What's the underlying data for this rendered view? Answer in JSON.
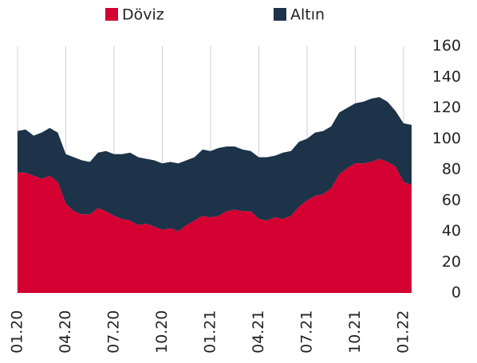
{
  "chart_data": {
    "type": "stacked_area",
    "categories": [
      "01.20",
      null,
      null,
      null,
      null,
      null,
      "04.20",
      null,
      null,
      null,
      null,
      null,
      "07.20",
      null,
      null,
      null,
      null,
      null,
      "10.20",
      null,
      null,
      null,
      null,
      null,
      "01.21",
      null,
      null,
      null,
      null,
      null,
      "04.21",
      null,
      null,
      null,
      null,
      null,
      "07.21",
      null,
      null,
      null,
      null,
      null,
      "10.21",
      null,
      null,
      null,
      null,
      null,
      "01.22",
      null
    ],
    "series": [
      {
        "name": "Döviz",
        "color": "#d40032",
        "values": [
          78,
          78,
          76,
          74,
          76,
          72,
          58,
          53,
          51,
          51,
          55,
          53,
          50,
          48,
          47,
          44,
          45,
          43,
          41,
          42,
          40,
          44,
          47,
          50,
          49,
          50,
          53,
          54,
          53,
          53,
          48,
          47,
          49,
          48,
          50,
          56,
          60,
          63,
          64,
          68,
          77,
          81,
          84,
          84,
          85,
          87,
          85,
          82,
          72,
          70
        ]
      },
      {
        "name": "Altın",
        "color": "#1c3349",
        "values": [
          27,
          28,
          26,
          30,
          31,
          32,
          32,
          35,
          35,
          34,
          36,
          39,
          40,
          42,
          44,
          44,
          42,
          43,
          43,
          43,
          44,
          42,
          41,
          43,
          43,
          44,
          42,
          41,
          40,
          39,
          40,
          41,
          40,
          43,
          42,
          42,
          40,
          41,
          41,
          40,
          40,
          39,
          39,
          40,
          41,
          40,
          39,
          36,
          38,
          39
        ]
      }
    ],
    "ylim": [
      0,
      160
    ],
    "yticks": [
      0,
      20,
      40,
      60,
      80,
      100,
      120,
      140,
      160
    ],
    "grid": true,
    "legend": "top"
  }
}
